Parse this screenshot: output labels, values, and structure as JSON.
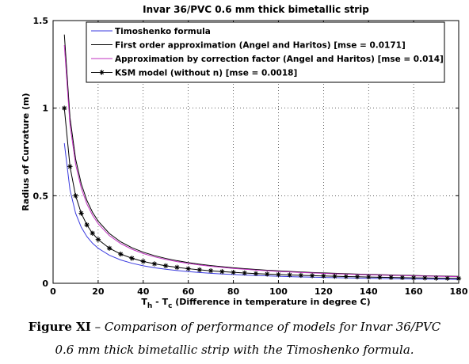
{
  "chart_data": {
    "type": "line",
    "title": "Invar 36/PVC 0.6 mm thick bimetallic strip",
    "xlabel_main": "T",
    "xlabel_sub1": "h",
    "xlabel_mid": " - T",
    "xlabel_sub2": "c",
    "xlabel_rest": " (Difference in temperature in degree C)",
    "ylabel": "Radius of Curvature (m)",
    "xlim": [
      0,
      180
    ],
    "ylim": [
      0,
      1.5
    ],
    "xticks": [
      "0",
      "20",
      "40",
      "60",
      "80",
      "100",
      "120",
      "140",
      "160",
      "180"
    ],
    "yticks": [
      "0",
      "0.5",
      "1",
      "1.5"
    ],
    "grid": true,
    "legend_position": "top-left",
    "x": [
      5,
      7.5,
      10,
      12.5,
      15,
      17.5,
      20,
      25,
      30,
      35,
      40,
      45,
      50,
      55,
      60,
      65,
      70,
      75,
      80,
      85,
      90,
      95,
      100,
      105,
      110,
      115,
      120,
      125,
      130,
      135,
      140,
      145,
      150,
      155,
      160,
      165,
      170,
      175,
      180
    ],
    "series": [
      {
        "name": "Timoshenko formula",
        "color": "#3a3adf",
        "marker": "none",
        "values": [
          0.8,
          0.5333,
          0.4,
          0.32,
          0.2667,
          0.2286,
          0.2,
          0.16,
          0.1333,
          0.1143,
          0.1,
          0.0889,
          0.08,
          0.0727,
          0.0667,
          0.0615,
          0.0571,
          0.0533,
          0.05,
          0.0471,
          0.0444,
          0.0421,
          0.04,
          0.0381,
          0.0364,
          0.0348,
          0.0333,
          0.032,
          0.0308,
          0.0296,
          0.0286,
          0.0276,
          0.0267,
          0.0258,
          0.025,
          0.0242,
          0.0235,
          0.0229,
          0.0222
        ]
      },
      {
        "name": "First order approximation (Angel and Haritos) [mse = 0.0171]",
        "color": "#000000",
        "marker": "none",
        "values": [
          1.42,
          0.9467,
          0.71,
          0.568,
          0.4733,
          0.4057,
          0.355,
          0.284,
          0.2367,
          0.2029,
          0.1775,
          0.1578,
          0.142,
          0.1291,
          0.1183,
          0.1092,
          0.1014,
          0.0947,
          0.0888,
          0.0835,
          0.0789,
          0.0747,
          0.071,
          0.0676,
          0.0645,
          0.0617,
          0.0592,
          0.0568,
          0.0546,
          0.0526,
          0.0507,
          0.049,
          0.0473,
          0.0458,
          0.0444,
          0.043,
          0.0418,
          0.0406,
          0.0394
        ]
      },
      {
        "name": "Approximation by correction factor (Angel and Haritos) [mse = 0.014]",
        "color": "#c030c0",
        "marker": "none",
        "values": [
          1.36,
          0.9067,
          0.68,
          0.544,
          0.4533,
          0.3886,
          0.34,
          0.272,
          0.2267,
          0.1943,
          0.17,
          0.1511,
          0.136,
          0.1236,
          0.1133,
          0.1046,
          0.0971,
          0.0907,
          0.085,
          0.08,
          0.0756,
          0.0716,
          0.068,
          0.0648,
          0.0618,
          0.0591,
          0.0567,
          0.0544,
          0.0523,
          0.0504,
          0.0486,
          0.0469,
          0.0453,
          0.0439,
          0.0425,
          0.0412,
          0.04,
          0.0389,
          0.0378
        ]
      },
      {
        "name": "KSM model (without n) [mse = 0.0018]",
        "color": "#000000",
        "marker": "star",
        "values": [
          1.0,
          0.6667,
          0.5,
          0.4,
          0.3333,
          0.2857,
          0.25,
          0.2,
          0.1667,
          0.1429,
          0.125,
          0.1111,
          0.1,
          0.0909,
          0.0833,
          0.0769,
          0.0714,
          0.0667,
          0.0625,
          0.0588,
          0.0556,
          0.0526,
          0.05,
          0.0476,
          0.0455,
          0.0435,
          0.0417,
          0.04,
          0.0385,
          0.037,
          0.0357,
          0.0345,
          0.0333,
          0.0323,
          0.0312,
          0.0303,
          0.0294,
          0.0286,
          0.0278
        ]
      }
    ]
  },
  "caption": {
    "label": "Figure XI",
    "dash": " – ",
    "line1_rest": "Comparison of performance of models for Invar 36/PVC",
    "line2": "0.6 mm thick bimetallic strip with the Timoshenko formula."
  }
}
